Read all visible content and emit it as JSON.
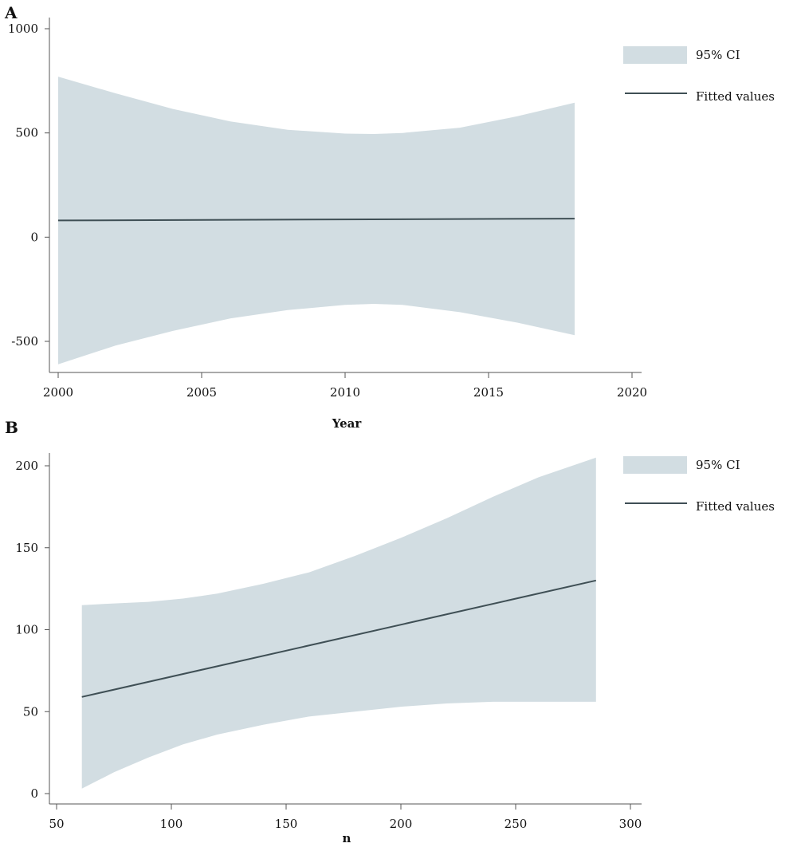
{
  "colors": {
    "ci_fill": "#d2dde2",
    "fit_line": "#3f4f55",
    "axis": "#555555"
  },
  "chart_data": [
    {
      "panel_label": "A",
      "type": "line",
      "xlabel": "Year",
      "ylabel": "",
      "xlim": [
        2000,
        2020
      ],
      "ylim": [
        -600,
        1000
      ],
      "x_ticks": [
        2000,
        2005,
        2010,
        2015,
        2020
      ],
      "y_ticks": [
        -500,
        0,
        500,
        1000
      ],
      "x_tick_labels": [
        "2000",
        "2005",
        "2010",
        "2015",
        "2020"
      ],
      "y_tick_labels": [
        "-500",
        "0",
        "500",
        "1000"
      ],
      "legend": {
        "position": "right",
        "entries": [
          {
            "kind": "area",
            "label": "95% CI"
          },
          {
            "kind": "line",
            "label": "Fitted values"
          }
        ]
      },
      "series": [
        {
          "name": "95% CI",
          "kind": "band",
          "x": [
            2000,
            2002,
            2004,
            2006,
            2008,
            2010,
            2011,
            2012,
            2014,
            2016,
            2018
          ],
          "lower": [
            -610,
            -520,
            -450,
            -390,
            -350,
            -325,
            -320,
            -325,
            -360,
            -410,
            -470
          ],
          "upper": [
            770,
            690,
            615,
            555,
            515,
            497,
            495,
            500,
            525,
            580,
            645
          ]
        },
        {
          "name": "Fitted values",
          "kind": "line",
          "x": [
            2000,
            2018
          ],
          "y": [
            80,
            89
          ]
        }
      ]
    },
    {
      "panel_label": "B",
      "type": "line",
      "xlabel": "n",
      "ylabel": "",
      "xlim": [
        50,
        300
      ],
      "ylim": [
        -2,
        208
      ],
      "x_ticks": [
        50,
        100,
        150,
        200,
        250,
        300
      ],
      "y_ticks": [
        0,
        50,
        100,
        150,
        200
      ],
      "x_tick_labels": [
        "50",
        "100",
        "150",
        "200",
        "250",
        "300"
      ],
      "y_tick_labels": [
        "0",
        "50",
        "100",
        "150",
        "200"
      ],
      "legend": {
        "position": "right",
        "entries": [
          {
            "kind": "area",
            "label": "95% CI"
          },
          {
            "kind": "line",
            "label": "Fitted values"
          }
        ]
      },
      "series": [
        {
          "name": "95% CI",
          "kind": "band",
          "x": [
            61,
            75,
            90,
            105,
            120,
            140,
            160,
            180,
            200,
            220,
            240,
            260,
            285
          ],
          "lower": [
            3,
            13,
            22,
            30,
            36,
            42,
            47,
            50,
            53,
            55,
            56,
            56,
            56
          ],
          "upper": [
            115,
            116,
            117,
            119,
            122,
            128,
            135,
            145,
            156,
            168,
            181,
            193,
            205
          ]
        },
        {
          "name": "Fitted values",
          "kind": "line",
          "x": [
            61,
            285
          ],
          "y": [
            59,
            130
          ]
        }
      ]
    }
  ]
}
